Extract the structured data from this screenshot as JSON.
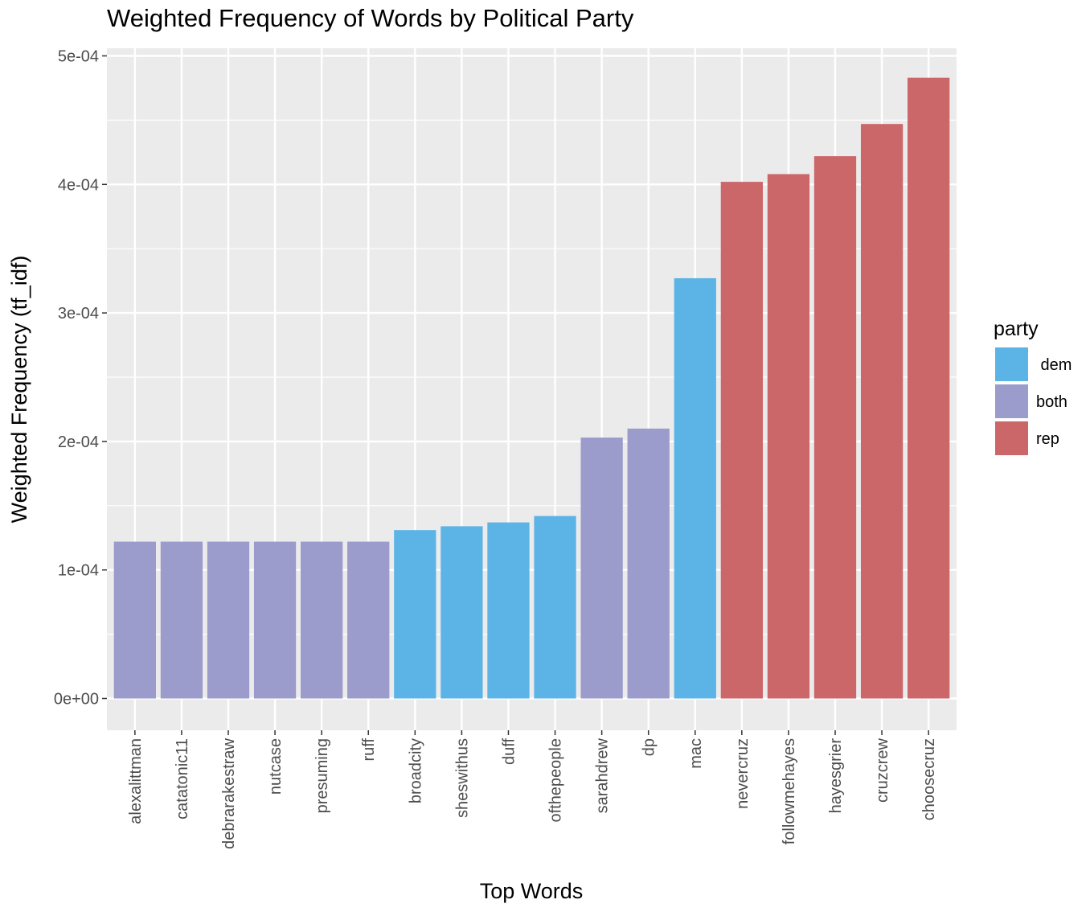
{
  "chart_data": {
    "type": "bar",
    "title": "Weighted Frequency of Words by Political Party",
    "xlabel": "Top Words",
    "ylabel": "Weighted Frequency (tf_idf)",
    "categories": [
      "alexalittman",
      "catatonic11",
      "debrarakestraw",
      "nutcase",
      "presuming",
      "ruff",
      "broadcity",
      "sheswithus",
      "duff",
      "ofthepeople",
      "sarahdrew",
      "dp",
      "mac",
      "nevercruz",
      "followmehayes",
      "hayesgrier",
      "cruzcrew",
      "choosecruz"
    ],
    "values": [
      0.000122,
      0.000122,
      0.000122,
      0.000122,
      0.000122,
      0.000122,
      0.000131,
      0.000134,
      0.000137,
      0.000142,
      0.000203,
      0.00021,
      0.000327,
      0.000402,
      0.000408,
      0.000422,
      0.000447,
      0.000483
    ],
    "party": [
      "both",
      "both",
      "both",
      "both",
      "both",
      "both",
      "dem",
      "dem",
      "dem",
      "dem",
      "both",
      "both",
      "dem",
      "rep",
      "rep",
      "rep",
      "rep",
      "rep"
    ],
    "ylim": [
      0,
      0.0005
    ],
    "yticks": [
      0,
      0.0001,
      0.0002,
      0.0003,
      0.0004,
      0.0005
    ],
    "ytick_labels": [
      "0e+00",
      "1e-04",
      "2e-04",
      "3e-04",
      "4e-04",
      "5e-04"
    ],
    "grid": true,
    "legend": {
      "title": "party",
      "placement": "right",
      "entries": [
        {
          "key": "dem",
          "label": " dem",
          "color": "#5cb4e6"
        },
        {
          "key": "both",
          "label": "both",
          "color": "#9b9bcc"
        },
        {
          "key": "rep",
          "label": "rep",
          "color": "#cb6669"
        }
      ]
    },
    "panel_color": "#ebebeb",
    "grid_color": "#ffffff"
  }
}
